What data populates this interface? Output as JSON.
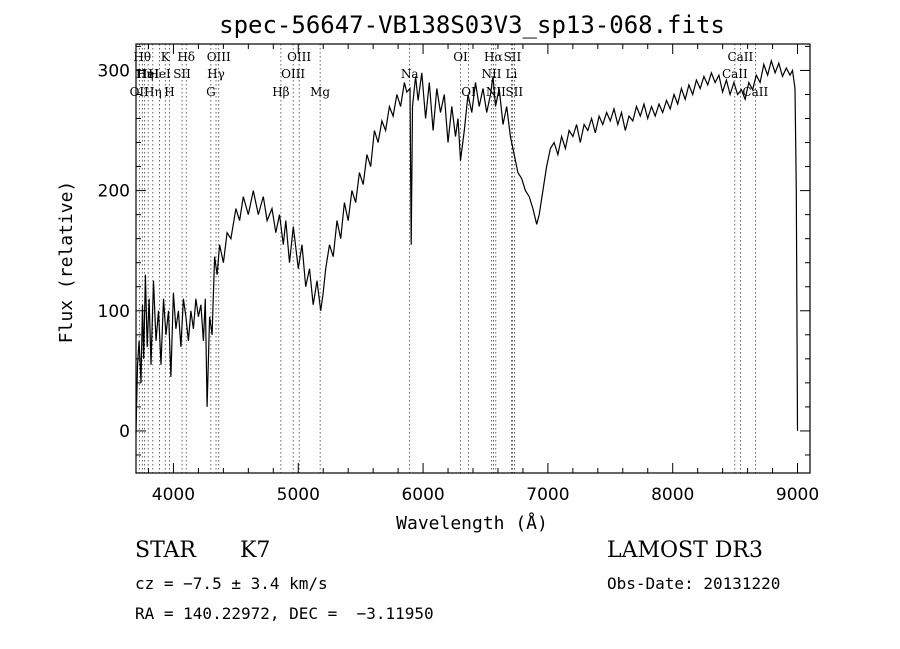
{
  "chart_data": {
    "type": "line",
    "title": "spec-56647-VB138S03V3_sp13-068.fits",
    "xlabel": "Wavelength (Å)",
    "ylabel": "Flux (relative)",
    "xlim": [
      3700,
      9100
    ],
    "ylim": [
      -35,
      322
    ],
    "xticks": [
      4000,
      5000,
      6000,
      7000,
      8000,
      9000
    ],
    "yticks": [
      0,
      100,
      200,
      300
    ],
    "grid": false,
    "series": [
      {
        "color": "#000000",
        "points": [
          [
            3700,
            -2
          ],
          [
            3712,
            55
          ],
          [
            3725,
            75
          ],
          [
            3740,
            40
          ],
          [
            3752,
            105
          ],
          [
            3762,
            60
          ],
          [
            3775,
            130
          ],
          [
            3790,
            70
          ],
          [
            3805,
            110
          ],
          [
            3820,
            55
          ],
          [
            3840,
            125
          ],
          [
            3860,
            75
          ],
          [
            3880,
            100
          ],
          [
            3900,
            55
          ],
          [
            3920,
            110
          ],
          [
            3940,
            80
          ],
          [
            3960,
            100
          ],
          [
            3980,
            45
          ],
          [
            4000,
            115
          ],
          [
            4020,
            85
          ],
          [
            4040,
            100
          ],
          [
            4060,
            70
          ],
          [
            4080,
            110
          ],
          [
            4100,
            95
          ],
          [
            4120,
            75
          ],
          [
            4140,
            100
          ],
          [
            4160,
            85
          ],
          [
            4180,
            110
          ],
          [
            4200,
            95
          ],
          [
            4220,
            105
          ],
          [
            4240,
            75
          ],
          [
            4255,
            110
          ],
          [
            4270,
            20
          ],
          [
            4290,
            95
          ],
          [
            4310,
            80
          ],
          [
            4330,
            145
          ],
          [
            4350,
            130
          ],
          [
            4370,
            155
          ],
          [
            4400,
            140
          ],
          [
            4430,
            165
          ],
          [
            4460,
            160
          ],
          [
            4500,
            185
          ],
          [
            4530,
            175
          ],
          [
            4560,
            195
          ],
          [
            4600,
            180
          ],
          [
            4640,
            200
          ],
          [
            4680,
            180
          ],
          [
            4720,
            195
          ],
          [
            4750,
            175
          ],
          [
            4790,
            185
          ],
          [
            4820,
            165
          ],
          [
            4850,
            180
          ],
          [
            4880,
            155
          ],
          [
            4900,
            175
          ],
          [
            4930,
            140
          ],
          [
            4960,
            170
          ],
          [
            5000,
            135
          ],
          [
            5030,
            155
          ],
          [
            5060,
            120
          ],
          [
            5090,
            135
          ],
          [
            5120,
            105
          ],
          [
            5150,
            125
          ],
          [
            5180,
            100
          ],
          [
            5200,
            115
          ],
          [
            5220,
            135
          ],
          [
            5250,
            155
          ],
          [
            5280,
            145
          ],
          [
            5310,
            175
          ],
          [
            5340,
            160
          ],
          [
            5370,
            190
          ],
          [
            5400,
            175
          ],
          [
            5430,
            200
          ],
          [
            5460,
            190
          ],
          [
            5490,
            215
          ],
          [
            5520,
            205
          ],
          [
            5550,
            230
          ],
          [
            5580,
            220
          ],
          [
            5610,
            250
          ],
          [
            5640,
            240
          ],
          [
            5670,
            258
          ],
          [
            5700,
            250
          ],
          [
            5730,
            270
          ],
          [
            5760,
            262
          ],
          [
            5790,
            280
          ],
          [
            5820,
            270
          ],
          [
            5850,
            290
          ],
          [
            5870,
            282
          ],
          [
            5895,
            285
          ],
          [
            5905,
            155
          ],
          [
            5915,
            270
          ],
          [
            5940,
            295
          ],
          [
            5960,
            275
          ],
          [
            5990,
            298
          ],
          [
            6020,
            260
          ],
          [
            6050,
            290
          ],
          [
            6080,
            250
          ],
          [
            6110,
            285
          ],
          [
            6140,
            265
          ],
          [
            6170,
            280
          ],
          [
            6200,
            240
          ],
          [
            6230,
            270
          ],
          [
            6260,
            245
          ],
          [
            6280,
            260
          ],
          [
            6300,
            225
          ],
          [
            6330,
            250
          ],
          [
            6360,
            280
          ],
          [
            6390,
            265
          ],
          [
            6420,
            290
          ],
          [
            6450,
            270
          ],
          [
            6480,
            285
          ],
          [
            6510,
            265
          ],
          [
            6540,
            280
          ],
          [
            6560,
            295
          ],
          [
            6580,
            270
          ],
          [
            6610,
            285
          ],
          [
            6640,
            255
          ],
          [
            6670,
            270
          ],
          [
            6700,
            245
          ],
          [
            6730,
            230
          ],
          [
            6760,
            215
          ],
          [
            6790,
            210
          ],
          [
            6820,
            200
          ],
          [
            6850,
            195
          ],
          [
            6880,
            185
          ],
          [
            6910,
            172
          ],
          [
            6930,
            180
          ],
          [
            6960,
            200
          ],
          [
            6990,
            220
          ],
          [
            7020,
            235
          ],
          [
            7050,
            240
          ],
          [
            7080,
            230
          ],
          [
            7110,
            245
          ],
          [
            7140,
            235
          ],
          [
            7170,
            250
          ],
          [
            7200,
            245
          ],
          [
            7230,
            255
          ],
          [
            7260,
            240
          ],
          [
            7290,
            255
          ],
          [
            7320,
            250
          ],
          [
            7350,
            260
          ],
          [
            7380,
            248
          ],
          [
            7410,
            262
          ],
          [
            7440,
            255
          ],
          [
            7470,
            265
          ],
          [
            7500,
            258
          ],
          [
            7530,
            268
          ],
          [
            7560,
            255
          ],
          [
            7590,
            265
          ],
          [
            7620,
            250
          ],
          [
            7650,
            262
          ],
          [
            7680,
            258
          ],
          [
            7710,
            270
          ],
          [
            7740,
            262
          ],
          [
            7770,
            272
          ],
          [
            7800,
            260
          ],
          [
            7830,
            270
          ],
          [
            7860,
            262
          ],
          [
            7890,
            272
          ],
          [
            7920,
            265
          ],
          [
            7950,
            275
          ],
          [
            7980,
            268
          ],
          [
            8010,
            280
          ],
          [
            8040,
            272
          ],
          [
            8070,
            285
          ],
          [
            8100,
            276
          ],
          [
            8130,
            288
          ],
          [
            8160,
            280
          ],
          [
            8190,
            292
          ],
          [
            8220,
            285
          ],
          [
            8250,
            295
          ],
          [
            8280,
            288
          ],
          [
            8310,
            298
          ],
          [
            8340,
            290
          ],
          [
            8370,
            296
          ],
          [
            8400,
            282
          ],
          [
            8430,
            292
          ],
          [
            8460,
            280
          ],
          [
            8490,
            290
          ],
          [
            8520,
            280
          ],
          [
            8550,
            284
          ],
          [
            8580,
            276
          ],
          [
            8610,
            290
          ],
          [
            8640,
            284
          ],
          [
            8670,
            296
          ],
          [
            8700,
            290
          ],
          [
            8730,
            305
          ],
          [
            8760,
            296
          ],
          [
            8790,
            308
          ],
          [
            8820,
            298
          ],
          [
            8850,
            306
          ],
          [
            8880,
            295
          ],
          [
            8910,
            302
          ],
          [
            8940,
            296
          ],
          [
            8960,
            300
          ],
          [
            8980,
            285
          ],
          [
            8990,
            200
          ],
          [
            9000,
            0
          ]
        ]
      }
    ],
    "lines": [
      {
        "x": 3726,
        "row": 3,
        "label": "OII"
      },
      {
        "x": 3750,
        "row": 1,
        "label": "Hθ"
      },
      {
        "x": 3770,
        "row": 2,
        "label": "Hη"
      },
      {
        "x": 3797,
        "row": 2,
        "label": "HeI"
      },
      {
        "x": 3835,
        "row": 3,
        "label": "Hη"
      },
      {
        "x": 3889,
        "row": 2,
        "label": "HeI"
      },
      {
        "x": 3934,
        "row": 1,
        "label": "K"
      },
      {
        "x": 3968,
        "row": 3,
        "label": "H"
      },
      {
        "x": 4069,
        "row": 2,
        "label": "SII"
      },
      {
        "x": 4102,
        "row": 1,
        "label": "Hδ"
      },
      {
        "x": 4300,
        "row": 3,
        "label": "G"
      },
      {
        "x": 4341,
        "row": 2,
        "label": "Hγ"
      },
      {
        "x": 4363,
        "row": 1,
        "label": "OIII"
      },
      {
        "x": 4861,
        "row": 3,
        "label": "Hβ"
      },
      {
        "x": 4959,
        "row": 2,
        "label": "OIII"
      },
      {
        "x": 5007,
        "row": 1,
        "label": "OIII"
      },
      {
        "x": 5175,
        "row": 3,
        "label": "Mg"
      },
      {
        "x": 5893,
        "row": 2,
        "label": "Na"
      },
      {
        "x": 6300,
        "row": 1,
        "label": "OI"
      },
      {
        "x": 6364,
        "row": 3,
        "label": "OI"
      },
      {
        "x": 6548,
        "row": 2,
        "label": "NII"
      },
      {
        "x": 6563,
        "row": 1,
        "label": "Hα"
      },
      {
        "x": 6583,
        "row": 3,
        "label": "NII"
      },
      {
        "x": 6708,
        "row": 2,
        "label": "Li"
      },
      {
        "x": 6716,
        "row": 1,
        "label": "SII"
      },
      {
        "x": 6731,
        "row": 3,
        "label": "SII"
      },
      {
        "x": 8498,
        "row": 2,
        "label": "CaII"
      },
      {
        "x": 8542,
        "row": 1,
        "label": "CaII"
      },
      {
        "x": 8662,
        "row": 3,
        "label": "CaII"
      }
    ]
  },
  "info": {
    "object_class": "STAR",
    "subclass": "K7",
    "survey": "LAMOST DR3",
    "cz": "cz = −7.5 ± 3.4 km/s",
    "obs_date": "Obs-Date: 20131220",
    "coords": "RA = 140.22972, DEC =  −3.11950"
  }
}
